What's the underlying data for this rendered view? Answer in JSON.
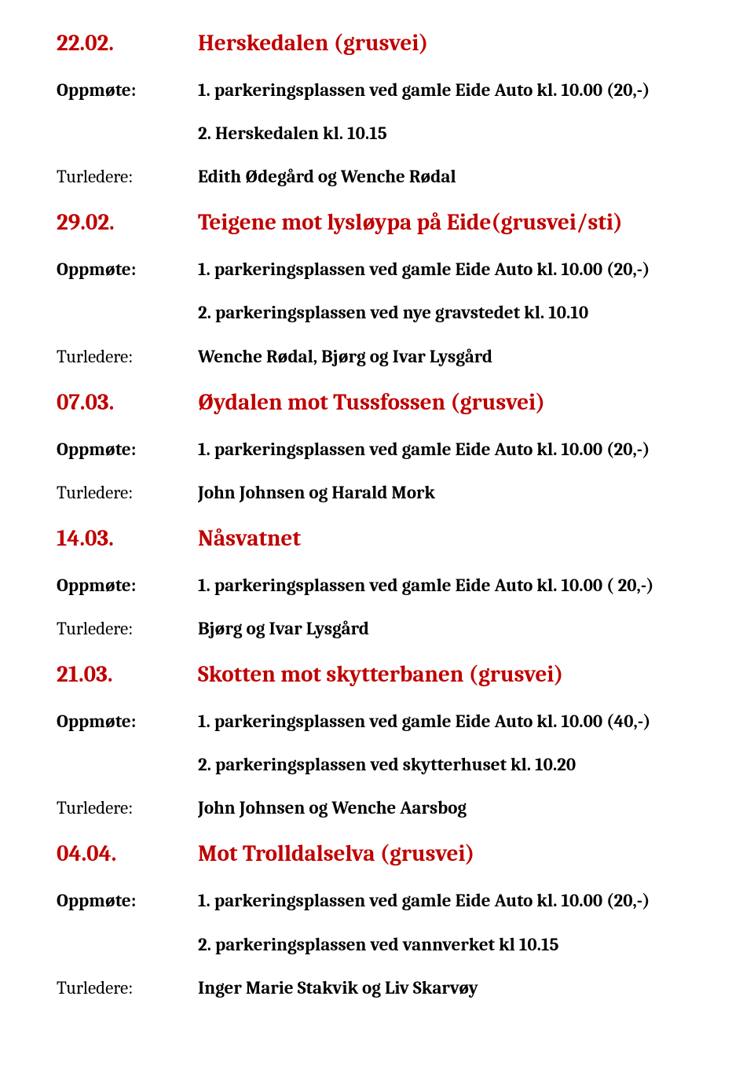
{
  "labels": {
    "oppmote": "Oppmøte:",
    "turledere": "Turledere:"
  },
  "entries": [
    {
      "date": "22.02.",
      "title": "Herskedalen (grusvei)",
      "oppmote": "1. parkeringsplassen ved gamle Eide Auto kl. 10.00 (20,-)",
      "oppmote2": "2. Herskedalen kl. 10.15",
      "turledere": "Edith Ødegård og Wenche Rødal"
    },
    {
      "date": "29.02.",
      "title": "Teigene mot lysløypa på Eide(grusvei/sti)",
      "oppmote": "1. parkeringsplassen ved gamle Eide Auto kl. 10.00 (20,-)",
      "oppmote2": "2. parkeringsplassen ved nye gravstedet kl. 10.10",
      "turledere": "Wenche Rødal, Bjørg og Ivar Lysgård"
    },
    {
      "date": "07.03.",
      "title": "Øydalen mot Tussfossen (grusvei)",
      "oppmote": "1. parkeringsplassen ved gamle Eide Auto kl. 10.00 (20,-)",
      "turledere": "John Johnsen og Harald Mork"
    },
    {
      "date": "14.03.",
      "title": "Nåsvatnet",
      "oppmote": "1. parkeringsplassen ved gamle Eide Auto kl. 10.00 ( 20,-)",
      "turledere": "Bjørg og Ivar Lysgård"
    },
    {
      "date": "21.03.",
      "title": "Skotten mot skytterbanen (grusvei)",
      "oppmote": "1. parkeringsplassen ved gamle Eide Auto kl. 10.00 (40,-)",
      "oppmote2": "2. parkeringsplassen ved skytterhuset kl. 10.20",
      "turledere": "John Johnsen og Wenche Aarsbog"
    },
    {
      "date": "04.04.",
      "title": "Mot Trolldalselva (grusvei)",
      "oppmote": "1. parkeringsplassen ved gamle Eide Auto kl. 10.00 (20,-)",
      "oppmote2": "2. parkeringsplassen ved vannverket kl 10.15",
      "turledere": "Inger Marie Stakvik og Liv Skarvøy"
    }
  ]
}
